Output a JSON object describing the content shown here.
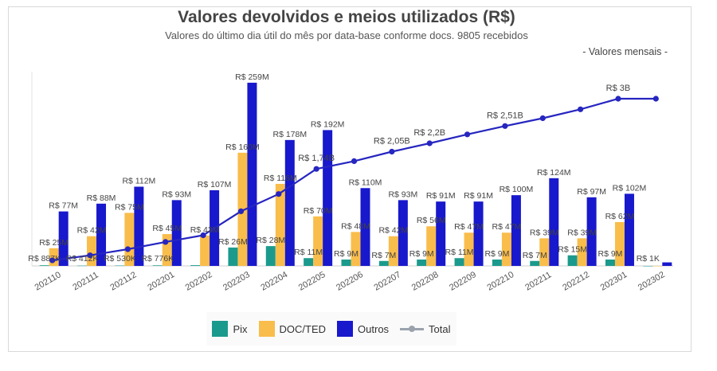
{
  "header": {
    "title": "Valores devolvidos e meios utilizados (R$)",
    "subtitle": "Valores do último dia útil do mês por data-base conforme docs. 9805 recebidos",
    "note": "- Valores mensais -"
  },
  "colors": {
    "pix": "#1a9a8c",
    "doc": "#f9bd4b",
    "outros": "#1818cc",
    "total": "#2626c0",
    "legend_total": "#9aa3ad"
  },
  "chart_data": {
    "type": "bar",
    "categories": [
      "202110",
      "202111",
      "202112",
      "202201",
      "202202",
      "202203",
      "202204",
      "202205",
      "202206",
      "202207",
      "202208",
      "202209",
      "202210",
      "202211",
      "202212",
      "202301",
      "202302"
    ],
    "series": [
      {
        "name": "Pix",
        "values": [
          0.887,
          0.412,
          0.53,
          0.776,
          1,
          26,
          28,
          11,
          9,
          7,
          9,
          11,
          9,
          7,
          15,
          9,
          0.001
        ],
        "labels": [
          "R$ 887K",
          "R$ 412K",
          "R$ 530K",
          "R$ 776K",
          "",
          "R$ 26M",
          "R$ 28M",
          "R$ 11M",
          "R$ 9M",
          "R$ 7M",
          "R$ 9M",
          "R$ 11M",
          "R$ 9M",
          "R$ 7M",
          "R$ 15M",
          "R$ 9M",
          "R$ 1K"
        ]
      },
      {
        "name": "DOC/TED",
        "values": [
          25,
          42,
          75,
          45,
          43,
          160,
          116,
          70,
          48,
          42,
          56,
          47,
          47,
          39,
          39,
          62,
          0
        ],
        "labels": [
          "R$ 25M",
          "R$ 42M",
          "R$ 75M",
          "R$ 45M",
          "R$ 43M",
          "R$ 160M",
          "R$ 116M",
          "R$ 70M",
          "R$ 48M",
          "R$ 42M",
          "R$ 56M",
          "R$ 47M",
          "R$ 47M",
          "R$ 39M",
          "R$ 39M",
          "R$ 62M",
          ""
        ]
      },
      {
        "name": "Outros",
        "values": [
          77,
          88,
          112,
          93,
          107,
          259,
          178,
          192,
          110,
          93,
          91,
          91,
          100,
          124,
          97,
          102,
          5
        ],
        "labels": [
          "R$ 77M",
          "R$ 88M",
          "R$ 112M",
          "R$ 93M",
          "R$ 107M",
          "R$ 259M",
          "R$ 178M",
          "R$ 192M",
          "R$ 110M",
          "R$ 93M",
          "R$ 91M",
          "R$ 91M",
          "R$ 100M",
          "R$ 124M",
          "R$ 97M",
          "R$ 102M",
          ""
        ]
      },
      {
        "name": "Total",
        "type": "line",
        "values": [
          0.1,
          0.19,
          0.3,
          0.43,
          0.55,
          0.98,
          1.29,
          1.74,
          1.88,
          2.05,
          2.2,
          2.36,
          2.51,
          2.65,
          2.81,
          3.0,
          3.0
        ],
        "labels": [
          "",
          "",
          "",
          "",
          "",
          "",
          "",
          "R$ 1,74B",
          "",
          "R$ 2,05B",
          "R$ 2,2B",
          "",
          "R$ 2,51B",
          "",
          "",
          "R$ 3B",
          ""
        ]
      }
    ],
    "y_left_range": [
      0,
      260
    ],
    "y_right_range": [
      0,
      3.3
    ],
    "y_left_unit": "M",
    "y_right_unit": "B",
    "legend_position": "bottom"
  }
}
